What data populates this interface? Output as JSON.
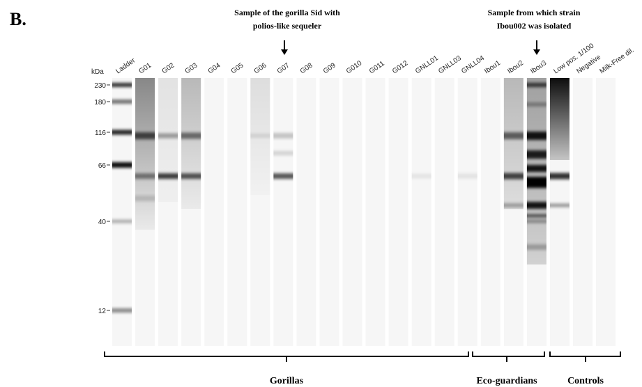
{
  "figure_label": "B.",
  "annotations": [
    {
      "lines": [
        "Sample of the gorilla Sid with",
        "polios-like sequeler"
      ]
    },
    {
      "lines": [
        "Sample from which strain",
        "Ibou002 was isolated"
      ]
    }
  ],
  "axis_unit": "kDa",
  "markers": [
    "230",
    "180",
    "116",
    "66",
    "40",
    "12"
  ],
  "lanes": [
    "Ladder",
    "G01",
    "G02",
    "G03",
    "G04",
    "G05",
    "G06",
    "G07",
    "G08",
    "G09",
    "G010",
    "G011",
    "G012",
    "GNLL01",
    "GNLL03",
    "GNLL04",
    "Ibou1",
    "Ibou2",
    "Ibou3",
    "Low pos. 1/100",
    "Negative",
    "Milk-Free dil."
  ],
  "groups": [
    "Gorillas",
    "Eco-guardians",
    "Controls"
  ]
}
